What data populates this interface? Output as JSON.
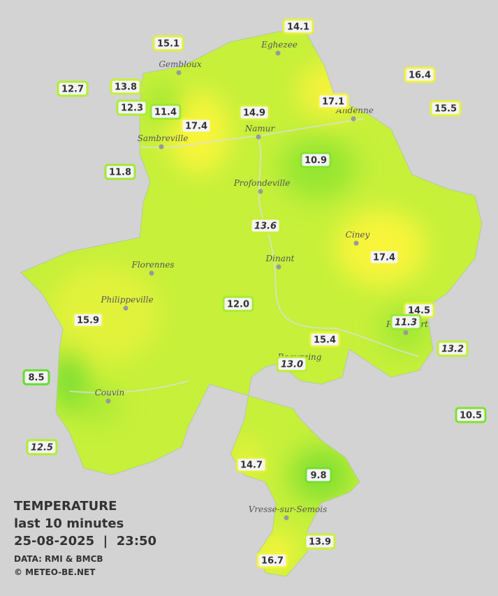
{
  "legend": {
    "title": "TEMPERATURE",
    "period": "last 10 minutes",
    "datetime": "25-08-2025  |  23:50",
    "source": "DATA: RMI & BMCB",
    "copyright": "© METEO-BE.NET"
  },
  "cities": [
    "Eghezee",
    "Gembloux",
    "Andenne",
    "Namur",
    "Sambreville",
    "Profondeville",
    "Ciney",
    "Dinant",
    "Florennes",
    "Philippeville",
    "Rochefort",
    "Beauraing",
    "Couvin",
    "Vresse-sur-Semois"
  ],
  "stations": [
    {
      "text": "14.1",
      "italic": false,
      "border": "#e4f23c"
    },
    {
      "text": "15.1",
      "italic": false,
      "border": "#e0f03c"
    },
    {
      "text": "12.7",
      "italic": false,
      "border": "#b0ee30"
    },
    {
      "text": "13.8",
      "italic": false,
      "border": "#c6f030"
    },
    {
      "text": "12.3",
      "italic": false,
      "border": "#acee30"
    },
    {
      "text": "11.4",
      "italic": false,
      "border": "#98e830"
    },
    {
      "text": "17.4",
      "italic": false,
      "border": "#f8f43a"
    },
    {
      "text": "14.9",
      "italic": false,
      "border": "#d8f236"
    },
    {
      "text": "17.1",
      "italic": false,
      "border": "#f6f33a"
    },
    {
      "text": "16.4",
      "italic": false,
      "border": "#f0f33a"
    },
    {
      "text": "15.5",
      "italic": false,
      "border": "#e6f23a"
    },
    {
      "text": "10.9",
      "italic": false,
      "border": "#86e230"
    },
    {
      "text": "11.8",
      "italic": false,
      "border": "#a0ea30"
    },
    {
      "text": "13.6",
      "italic": true,
      "border": "#c8f030"
    },
    {
      "text": "17.4",
      "italic": false,
      "border": "#f8f43a"
    },
    {
      "text": "12.0",
      "italic": false,
      "border": "#a6ec30"
    },
    {
      "text": "15.9",
      "italic": false,
      "border": "#eaf33a"
    },
    {
      "text": "14.5",
      "italic": false,
      "border": "#dcf236"
    },
    {
      "text": "11.3",
      "italic": true,
      "border": "#96e830"
    },
    {
      "text": "15.4",
      "italic": false,
      "border": "#e6f23a"
    },
    {
      "text": "13.2",
      "italic": true,
      "border": "#c0f030"
    },
    {
      "text": "13.0",
      "italic": true,
      "border": "#bcee30"
    },
    {
      "text": "8.5",
      "italic": false,
      "border": "#68dc30"
    },
    {
      "text": "10.5",
      "italic": false,
      "border": "#80e030"
    },
    {
      "text": "12.5",
      "italic": true,
      "border": "#b0ee30"
    },
    {
      "text": "14.7",
      "italic": false,
      "border": "#e0f236"
    },
    {
      "text": "9.8",
      "italic": false,
      "border": "#74de30"
    },
    {
      "text": "13.9",
      "italic": false,
      "border": "#ccf032"
    },
    {
      "text": "16.7",
      "italic": false,
      "border": "#f4f33a"
    }
  ]
}
